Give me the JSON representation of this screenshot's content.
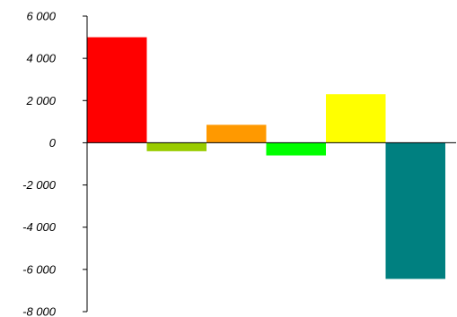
{
  "chart_data": {
    "type": "bar",
    "title": "",
    "xlabel": "",
    "ylabel": "",
    "ylim": [
      -8000,
      6000
    ],
    "y_ticks": [
      6000,
      4000,
      2000,
      0,
      -2000,
      -4000,
      -6000,
      -8000
    ],
    "y_tick_labels": [
      "6 000",
      "4 000",
      "2 000",
      "0",
      "-2 000",
      "-4 000",
      "-6 000",
      "-8 000"
    ],
    "grid": false,
    "legend": "none",
    "bars": [
      {
        "value": 5000,
        "color": "#ff0000"
      },
      {
        "value": -400,
        "color": "#99cc00"
      },
      {
        "value": 850,
        "color": "#ff9900"
      },
      {
        "value": -600,
        "color": "#00ff00"
      },
      {
        "value": 2300,
        "color": "#ffff00"
      },
      {
        "value": -6450,
        "color": "#008080"
      }
    ]
  }
}
